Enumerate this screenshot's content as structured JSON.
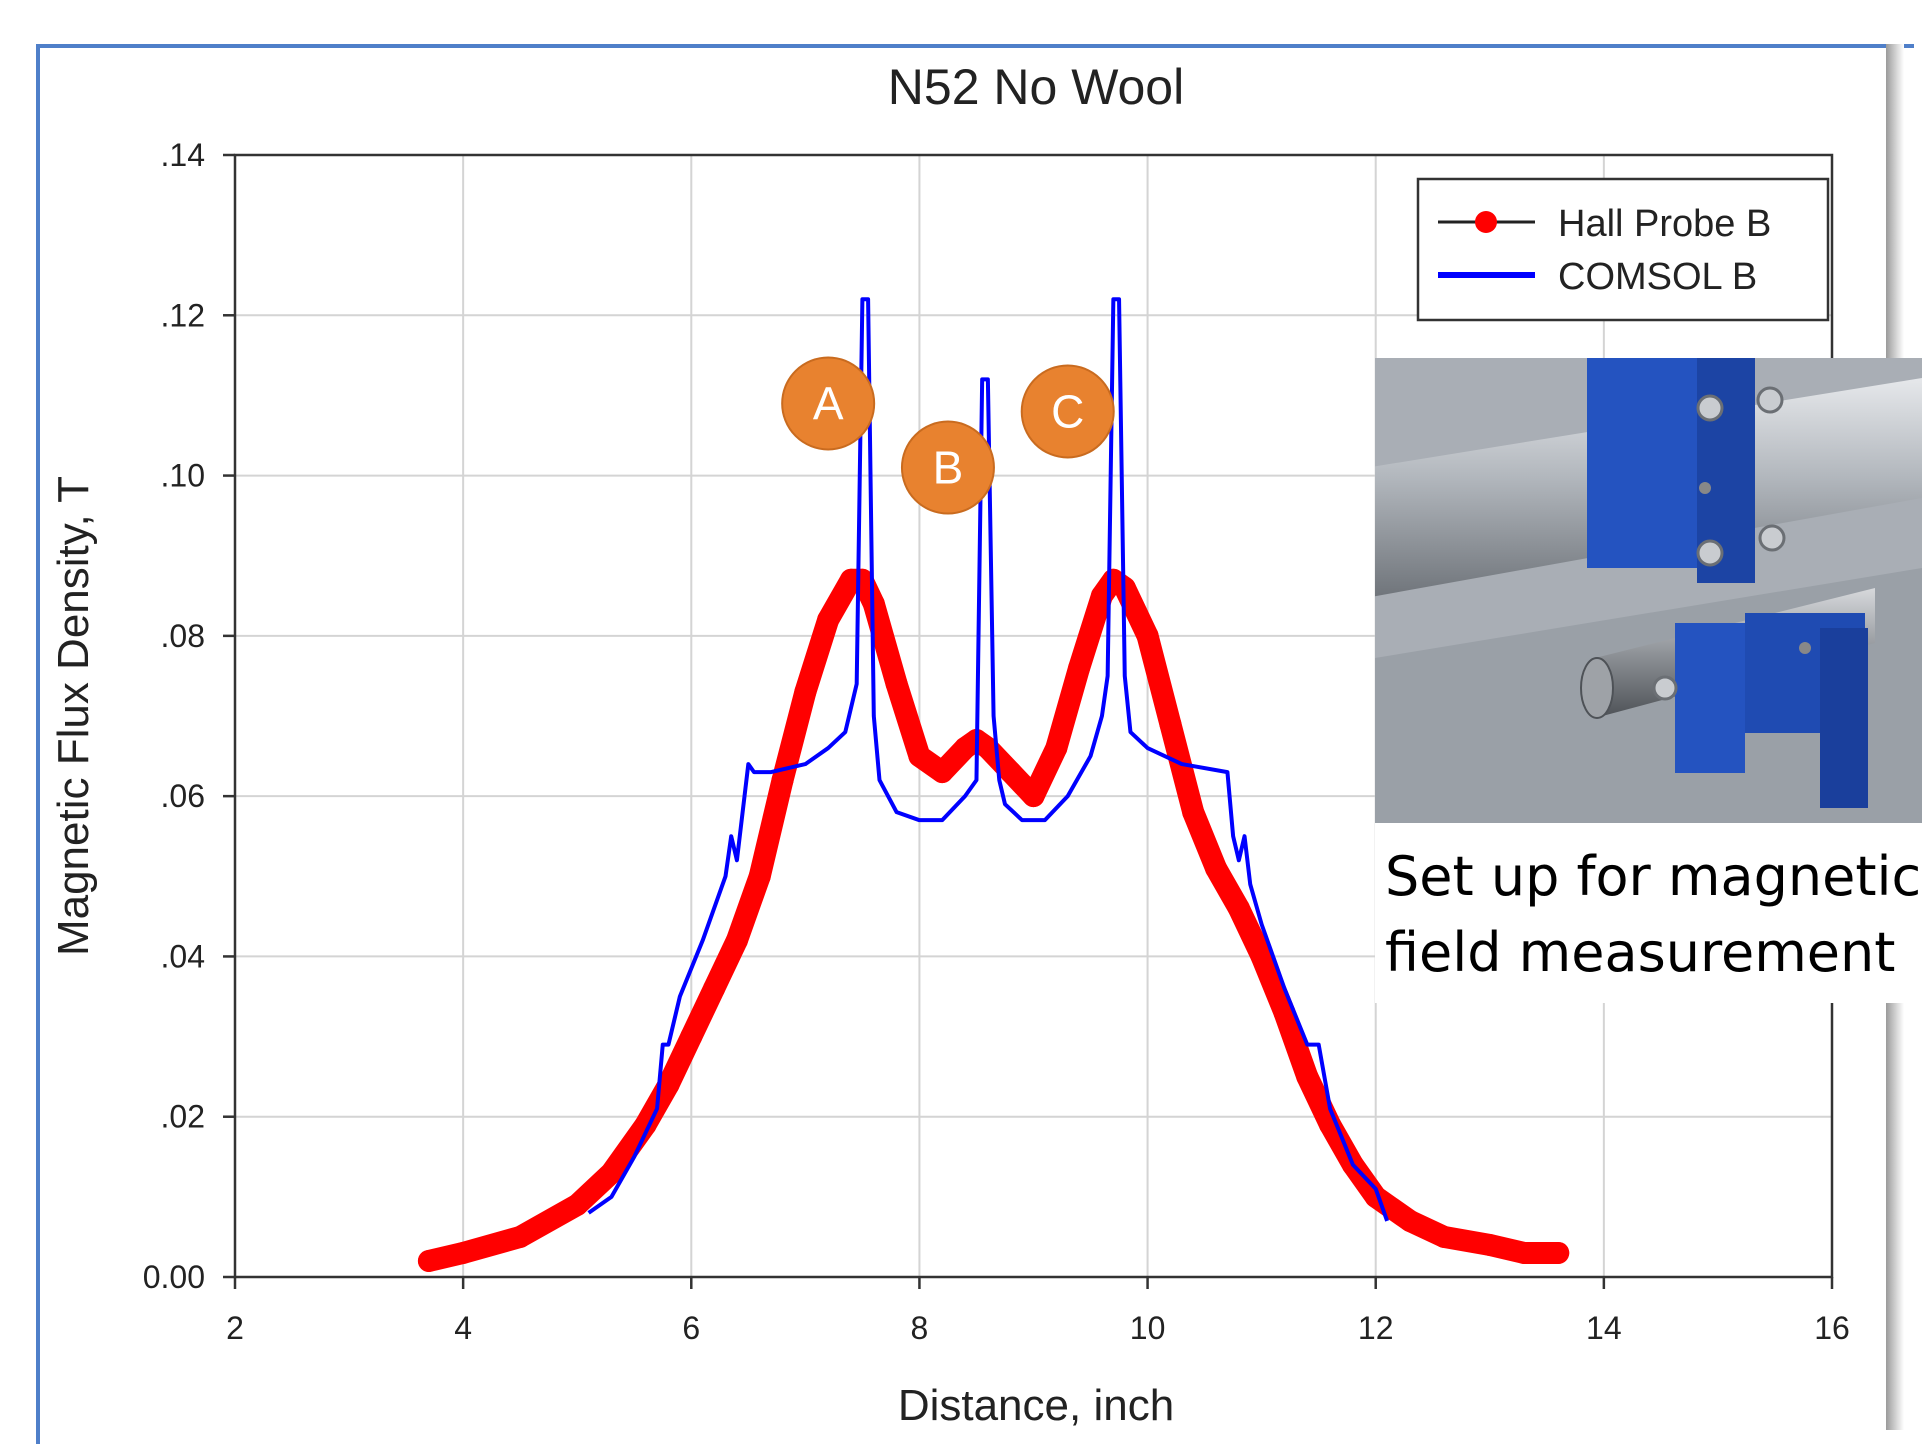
{
  "chart_data": {
    "type": "line",
    "title": "N52 No Wool",
    "xlabel": "Distance, inch",
    "ylabel": "Magnetic Flux Density, T",
    "xlim": [
      2,
      16
    ],
    "ylim": [
      0,
      0.14
    ],
    "x_ticks": [
      2,
      4,
      6,
      8,
      10,
      12,
      14,
      16
    ],
    "x_tick_labels": [
      "2",
      "4",
      "6",
      "8",
      "10",
      "12",
      "14",
      "16"
    ],
    "y_ticks": [
      0,
      0.02,
      0.04,
      0.06,
      0.08,
      0.1,
      0.12,
      0.14
    ],
    "y_tick_labels": [
      "0.00",
      ".02",
      ".04",
      ".06",
      ".08",
      ".10",
      ".12",
      ".14"
    ],
    "grid": true,
    "legend": "top-right",
    "series": [
      {
        "name": "Hall Probe B",
        "color": "#ff0000",
        "marker": "circle",
        "x": [
          3.7,
          4.0,
          4.5,
          5.0,
          5.3,
          5.6,
          5.8,
          6.0,
          6.2,
          6.4,
          6.6,
          6.8,
          7.0,
          7.2,
          7.4,
          7.5,
          7.6,
          7.8,
          8.0,
          8.2,
          8.4,
          8.5,
          8.6,
          8.8,
          9.0,
          9.2,
          9.4,
          9.6,
          9.7,
          9.8,
          10.0,
          10.2,
          10.4,
          10.6,
          10.8,
          11.0,
          11.2,
          11.4,
          11.6,
          11.8,
          12.0,
          12.3,
          12.6,
          13.0,
          13.3,
          13.6
        ],
        "y": [
          0.002,
          0.003,
          0.005,
          0.009,
          0.013,
          0.019,
          0.024,
          0.03,
          0.036,
          0.042,
          0.05,
          0.062,
          0.073,
          0.082,
          0.087,
          0.087,
          0.084,
          0.074,
          0.065,
          0.063,
          0.066,
          0.067,
          0.066,
          0.063,
          0.06,
          0.066,
          0.076,
          0.085,
          0.087,
          0.086,
          0.08,
          0.069,
          0.058,
          0.051,
          0.046,
          0.04,
          0.033,
          0.025,
          0.019,
          0.014,
          0.01,
          0.007,
          0.005,
          0.004,
          0.003,
          0.003
        ]
      },
      {
        "name": "COMSOL B",
        "color": "#0000ff",
        "marker": "none",
        "x": [
          5.1,
          5.3,
          5.5,
          5.7,
          5.75,
          5.8,
          5.9,
          6.1,
          6.3,
          6.35,
          6.4,
          6.45,
          6.5,
          6.55,
          6.7,
          7.0,
          7.2,
          7.35,
          7.45,
          7.5,
          7.55,
          7.6,
          7.65,
          7.8,
          8.0,
          8.2,
          8.4,
          8.5,
          8.55,
          8.6,
          8.65,
          8.7,
          8.75,
          8.9,
          9.1,
          9.3,
          9.5,
          9.6,
          9.65,
          9.7,
          9.75,
          9.8,
          9.85,
          10.0,
          10.3,
          10.7,
          10.75,
          10.8,
          10.85,
          10.9,
          11.0,
          11.2,
          11.4,
          11.5,
          11.6,
          11.8,
          12.0,
          12.1
        ],
        "y": [
          0.008,
          0.01,
          0.015,
          0.021,
          0.029,
          0.029,
          0.035,
          0.042,
          0.05,
          0.055,
          0.052,
          0.058,
          0.064,
          0.063,
          0.063,
          0.064,
          0.066,
          0.068,
          0.074,
          0.122,
          0.122,
          0.07,
          0.062,
          0.058,
          0.057,
          0.057,
          0.06,
          0.062,
          0.112,
          0.112,
          0.07,
          0.062,
          0.059,
          0.057,
          0.057,
          0.06,
          0.065,
          0.07,
          0.075,
          0.122,
          0.122,
          0.075,
          0.068,
          0.066,
          0.064,
          0.063,
          0.055,
          0.052,
          0.055,
          0.049,
          0.044,
          0.036,
          0.029,
          0.029,
          0.021,
          0.014,
          0.011,
          0.007
        ]
      }
    ],
    "annotations": [
      {
        "label": "A",
        "x": 7.2,
        "y": 0.109
      },
      {
        "label": "B",
        "x": 8.25,
        "y": 0.101
      },
      {
        "label": "C",
        "x": 9.3,
        "y": 0.108
      }
    ],
    "annotation_color": "#e8822f"
  },
  "inset": {
    "caption_line1": "Set up for magnetic",
    "caption_line2": "field measurement",
    "colors": {
      "bracket": "#1f4fb8",
      "pipe": "#b9bdc2",
      "rod": "#8a8e93"
    }
  }
}
